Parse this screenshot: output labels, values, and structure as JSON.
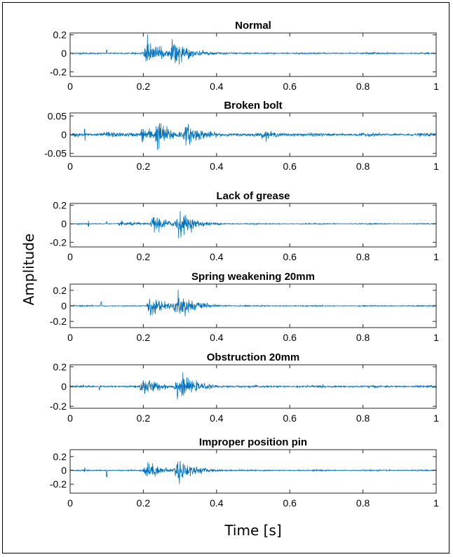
{
  "chart_data": {
    "type": "line",
    "xlabel": "Time [s]",
    "ylabel": "Amplitude",
    "xlim": [
      0,
      1
    ],
    "xticks": [
      "0",
      "0.2",
      "0.4",
      "0.6",
      "0.8",
      "1"
    ],
    "xtick_values": [
      0,
      0.2,
      0.4,
      0.6,
      0.8,
      1
    ],
    "line_color": "#0072BD",
    "subplots": [
      {
        "title": "Normal",
        "ylim": [
          -0.25,
          0.22
        ],
        "yticks": [
          "0.2",
          "0",
          "-0.2"
        ],
        "ytick_values": [
          0.2,
          0,
          -0.2
        ],
        "baseline_noise": 0.006,
        "event_bursts": [
          [
            0.21,
            0.23
          ],
          [
            0.285,
            0.2
          ]
        ],
        "spikes": [
          [
            0.1,
            0.03
          ]
        ]
      },
      {
        "title": "Broken bolt",
        "ylim": [
          -0.058,
          0.058
        ],
        "yticks": [
          "0.05",
          "0",
          "-0.05"
        ],
        "ytick_values": [
          0.05,
          0,
          -0.05
        ],
        "baseline_noise": 0.003,
        "event_bursts": [
          [
            0.1,
            0.012
          ],
          [
            0.2,
            0.03
          ],
          [
            0.24,
            0.05
          ],
          [
            0.32,
            0.035
          ],
          [
            0.53,
            0.012
          ]
        ],
        "spikes": [
          [
            0.04,
            0.015
          ]
        ]
      },
      {
        "title": "Lack of grease",
        "ylim": [
          -0.25,
          0.22
        ],
        "yticks": [
          "0.2",
          "0",
          "-0.2"
        ],
        "ytick_values": [
          0.2,
          0,
          -0.2
        ],
        "baseline_noise": 0.004,
        "event_bursts": [
          [
            0.14,
            0.04
          ],
          [
            0.23,
            0.16
          ],
          [
            0.295,
            0.22
          ]
        ],
        "spikes": [
          [
            0.05,
            0.03
          ],
          [
            0.1,
            0.02
          ]
        ]
      },
      {
        "title": "Spring weakening 20mm",
        "ylim": [
          -0.28,
          0.28
        ],
        "yticks": [
          "0.2",
          "0",
          "-0.2"
        ],
        "ytick_values": [
          0.2,
          0,
          -0.2
        ],
        "baseline_noise": 0.005,
        "event_bursts": [
          [
            0.22,
            0.22
          ],
          [
            0.295,
            0.27
          ]
        ],
        "spikes": [
          [
            0.085,
            0.05
          ]
        ]
      },
      {
        "title": "Obstruction 20mm",
        "ylim": [
          -0.22,
          0.22
        ],
        "yticks": [
          "0.2",
          "0",
          "-0.2"
        ],
        "ytick_values": [
          0.2,
          0,
          -0.2
        ],
        "baseline_noise": 0.008,
        "event_bursts": [
          [
            0.2,
            0.15
          ],
          [
            0.295,
            0.2
          ]
        ],
        "spikes": [
          [
            0.08,
            0.03
          ]
        ]
      },
      {
        "title": "Improper position pin",
        "ylim": [
          -0.33,
          0.3
        ],
        "yticks": [
          "0.2",
          "0",
          "-0.2"
        ],
        "ytick_values": [
          0.2,
          0,
          -0.2
        ],
        "baseline_noise": 0.007,
        "event_bursts": [
          [
            0.21,
            0.2
          ],
          [
            0.295,
            0.28
          ]
        ],
        "spikes": [
          [
            0.1,
            0.09
          ],
          [
            0.04,
            0.03
          ]
        ]
      }
    ]
  }
}
